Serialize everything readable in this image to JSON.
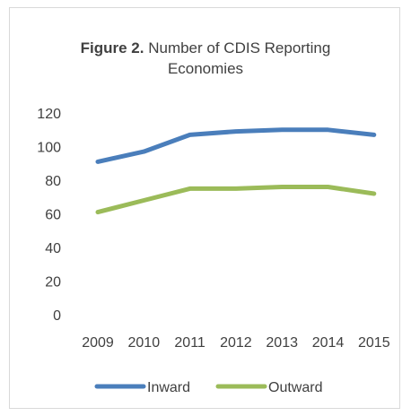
{
  "chart_data": {
    "type": "line",
    "title_prefix": "Figure 2.",
    "title_line1": " Number of CDIS Reporting",
    "title_line2": "Economies",
    "x": [
      "2009",
      "2010",
      "2011",
      "2012",
      "2013",
      "2014",
      "2015"
    ],
    "series": [
      {
        "name": "Inward",
        "color": "#4a7ebb",
        "values": [
          91,
          97,
          107,
          109,
          110,
          110,
          107
        ]
      },
      {
        "name": "Outward",
        "color": "#9bbb59",
        "values": [
          61,
          68,
          75,
          75,
          76,
          76,
          72
        ]
      }
    ],
    "ylim": [
      0,
      120
    ],
    "yticks": [
      "0",
      "20",
      "40",
      "60",
      "80",
      "100",
      "120"
    ],
    "grid": false,
    "legend_position": "bottom"
  }
}
